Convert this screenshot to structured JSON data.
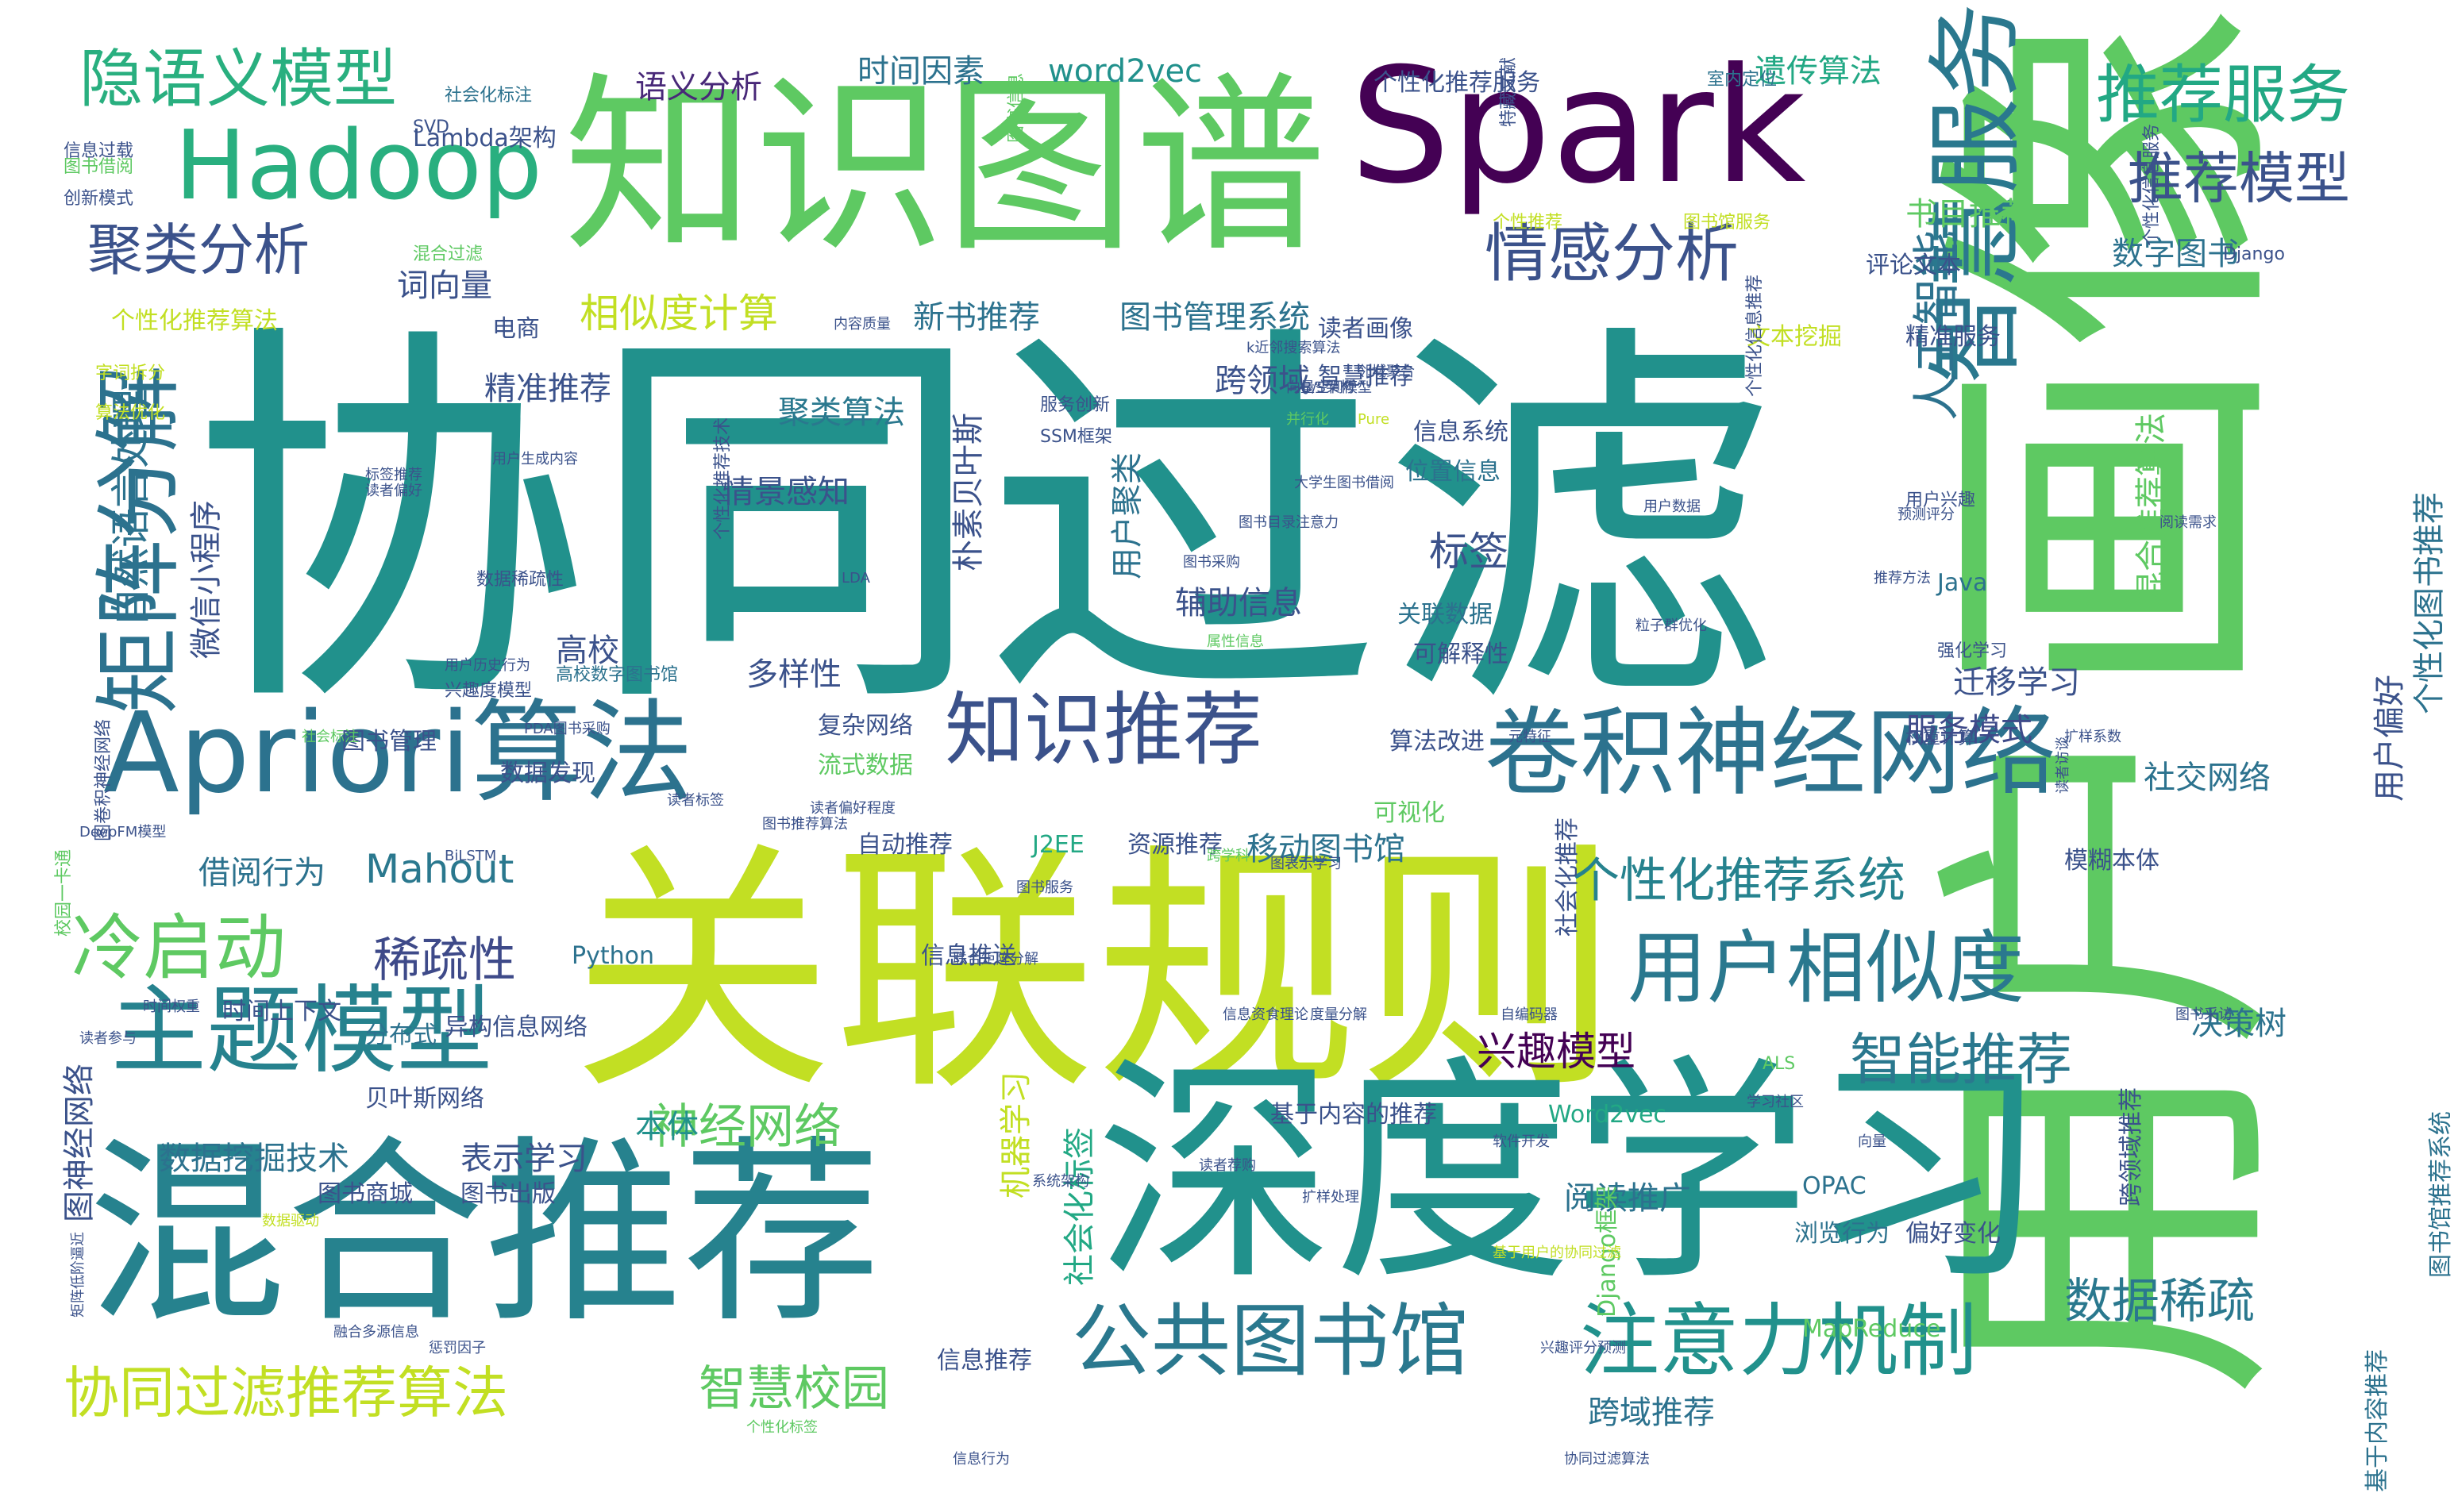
{
  "word_cloud": {
    "words": [
      {
        "text": "协同过滤",
        "color": "#21918c"
      },
      {
        "text": "用户画像",
        "color": "#5ec962"
      },
      {
        "text": "关联规则",
        "color": "#c2df23"
      },
      {
        "text": "深度学习",
        "color": "#21918c"
      },
      {
        "text": "混合推荐",
        "color": "#26828e"
      },
      {
        "text": "知识图谱",
        "color": "#5ec962"
      },
      {
        "text": "Spark",
        "color": "#440154"
      },
      {
        "text": "Apriori算法",
        "color": "#2c728e"
      },
      {
        "text": "Hadoop",
        "color": "#29af7f"
      },
      {
        "text": "卷积神经网络",
        "color": "#2c728e"
      },
      {
        "text": "智慧服务",
        "color": "#2a788e"
      },
      {
        "text": "矩阵分解",
        "color": "#2c728e"
      },
      {
        "text": "主题模型",
        "color": "#26828e"
      },
      {
        "text": "用户相似度",
        "color": "#2a788e"
      },
      {
        "text": "公共图书馆",
        "color": "#2a788e"
      },
      {
        "text": "注意力机制",
        "color": "#21918c"
      },
      {
        "text": "知识推荐",
        "color": "#3b528b"
      },
      {
        "text": "情感分析",
        "color": "#3b528b"
      },
      {
        "text": "隐语义模型",
        "color": "#29af7f"
      },
      {
        "text": "推荐服务",
        "color": "#22a884"
      },
      {
        "text": "推荐模型",
        "color": "#3b528b"
      },
      {
        "text": "聚类分析",
        "color": "#3b528b"
      },
      {
        "text": "冷启动",
        "color": "#5ec962"
      },
      {
        "text": "协同过滤推荐算法",
        "color": "#c2df23"
      },
      {
        "text": "个性化推荐系统",
        "color": "#26828e"
      },
      {
        "text": "智能推荐",
        "color": "#2a788e"
      },
      {
        "text": "人工智能",
        "color": "#2c728e"
      },
      {
        "text": "稀疏性",
        "color": "#3e4a89"
      },
      {
        "text": "Mahout",
        "color": "#2a788e"
      },
      {
        "text": "神经网络",
        "color": "#5ec962"
      },
      {
        "text": "智慧校园",
        "color": "#5ec962"
      },
      {
        "text": "数据稀疏",
        "color": "#2a788e"
      },
      {
        "text": "标签",
        "color": "#3b528b"
      },
      {
        "text": "兴趣模型",
        "color": "#440154"
      },
      {
        "text": "自然语言处理",
        "color": "#2c728e"
      },
      {
        "text": "相似度计算",
        "color": "#c2df23"
      },
      {
        "text": "遗传算法",
        "color": "#22a884"
      },
      {
        "text": "word2vec",
        "color": "#21918c"
      },
      {
        "text": "时间因素",
        "color": "#2c728e"
      },
      {
        "text": "语义分析",
        "color": "#482878"
      },
      {
        "text": "新书推荐",
        "color": "#2c728e"
      },
      {
        "text": "图书管理系统",
        "color": "#2c728e"
      },
      {
        "text": "精准推荐",
        "color": "#3b528b"
      },
      {
        "text": "跨领域",
        "color": "#3b528b"
      },
      {
        "text": "聚类算法",
        "color": "#2a788e"
      },
      {
        "text": "情景感知",
        "color": "#3b528b"
      },
      {
        "text": "多样性",
        "color": "#3b528b"
      },
      {
        "text": "高校",
        "color": "#3b528b"
      },
      {
        "text": "辅助信息",
        "color": "#3b528b"
      },
      {
        "text": "迁移学习",
        "color": "#3b528b"
      },
      {
        "text": "移动图书馆",
        "color": "#2c728e"
      },
      {
        "text": "决策树",
        "color": "#2c728e"
      },
      {
        "text": "表示学习",
        "color": "#3b528b"
      },
      {
        "text": "数据挖掘技术",
        "color": "#2c728e"
      },
      {
        "text": "本体",
        "color": "#21918c"
      },
      {
        "text": "阅读推广",
        "color": "#2c728e"
      },
      {
        "text": "跨域推荐",
        "color": "#2c728e"
      },
      {
        "text": "借阅行为",
        "color": "#2c728e"
      },
      {
        "text": "服务模式",
        "color": "#3e4a89"
      },
      {
        "text": "社交网络",
        "color": "#2c728e"
      },
      {
        "text": "数字图书",
        "color": "#2c728e"
      },
      {
        "text": "书目推荐",
        "color": "#5ec962"
      },
      {
        "text": "Lambda架构",
        "color": "#3b528b"
      },
      {
        "text": "词向量",
        "color": "#3b528b"
      },
      {
        "text": "电商",
        "color": "#3b528b"
      },
      {
        "text": "微信小程序",
        "color": "#3b528b"
      },
      {
        "text": "图神经网络",
        "color": "#3b528b"
      },
      {
        "text": "用户偏好",
        "color": "#3b528b"
      },
      {
        "text": "个性化图书推荐",
        "color": "#2c728e"
      },
      {
        "text": "混合推荐算法",
        "color": "#5ec962"
      },
      {
        "text": "机器学习",
        "color": "#c2df23"
      },
      {
        "text": "社会化标签",
        "color": "#22a884"
      },
      {
        "text": "朴素贝叶斯",
        "color": "#3b528b"
      },
      {
        "text": "用户聚类",
        "color": "#2c728e"
      },
      {
        "text": "智慧推荐",
        "color": "#3b528b"
      },
      {
        "text": "读者画像",
        "color": "#3b528b"
      },
      {
        "text": "个性化推荐算法",
        "color": "#c2df23"
      },
      {
        "text": "个性化推荐服务",
        "color": "#3b528b"
      },
      {
        "text": "精准服务",
        "color": "#3b528b"
      },
      {
        "text": "文本挖掘",
        "color": "#c2df23"
      },
      {
        "text": "评论文本",
        "color": "#3b528b"
      },
      {
        "text": "位置信息",
        "color": "#2c728e"
      },
      {
        "text": "关联数据",
        "color": "#2c728e"
      },
      {
        "text": "可解释性",
        "color": "#3b528b"
      },
      {
        "text": "信息系统",
        "color": "#3b528b"
      },
      {
        "text": "Java",
        "color": "#2c728e"
      },
      {
        "text": "图书管理",
        "color": "#3b528b"
      },
      {
        "text": "复杂网络",
        "color": "#3b528b"
      },
      {
        "text": "流式数据",
        "color": "#5ec962"
      },
      {
        "text": "自动推荐",
        "color": "#3b528b"
      },
      {
        "text": "J2EE",
        "color": "#22a884"
      },
      {
        "text": "资源推荐",
        "color": "#3b528b"
      },
      {
        "text": "数据发现",
        "color": "#3b528b"
      },
      {
        "text": "可视化",
        "color": "#5ec962"
      },
      {
        "text": "算法改进",
        "color": "#3b528b"
      },
      {
        "text": "模糊本体",
        "color": "#3b528b"
      },
      {
        "text": "贝叶斯网络",
        "color": "#3b528b"
      },
      {
        "text": "时间上下文",
        "color": "#3b528b"
      },
      {
        "text": "分布式",
        "color": "#2c728e"
      },
      {
        "text": "异构信息网络",
        "color": "#3b528b"
      },
      {
        "text": "图书商城",
        "color": "#3b528b"
      },
      {
        "text": "图书出版",
        "color": "#3b528b"
      },
      {
        "text": "信息推送",
        "color": "#3b528b"
      },
      {
        "text": "Python",
        "color": "#2c728e"
      },
      {
        "text": "Word2vec",
        "color": "#22a884"
      },
      {
        "text": "基于内容的推荐",
        "color": "#3b528b"
      },
      {
        "text": "社会化推荐",
        "color": "#3b528b"
      },
      {
        "text": "跨领域推荐",
        "color": "#3b528b"
      },
      {
        "text": "OPAC",
        "color": "#2c728e"
      },
      {
        "text": "浏览行为",
        "color": "#2c728e"
      },
      {
        "text": "偏好变化",
        "color": "#3b528b"
      },
      {
        "text": "MapReduce",
        "color": "#5ec962"
      },
      {
        "text": "信息推荐",
        "color": "#3b528b"
      },
      {
        "text": "Django框架",
        "color": "#5ec962"
      },
      {
        "text": "图书馆推荐系统",
        "color": "#2c728e"
      },
      {
        "text": "基于内容推荐",
        "color": "#2c728e"
      },
      {
        "text": "SVD",
        "color": "#3b528b"
      },
      {
        "text": "社会化标注",
        "color": "#2c728e"
      },
      {
        "text": "信息过载",
        "color": "#3b528b"
      },
      {
        "text": "图书借阅",
        "color": "#5ec962"
      },
      {
        "text": "创新模式",
        "color": "#3b528b"
      },
      {
        "text": "字词拆分",
        "color": "#c2df23"
      },
      {
        "text": "算法优化",
        "color": "#c2df23"
      },
      {
        "text": "数据稀疏性",
        "color": "#3b528b"
      },
      {
        "text": "兴趣度模型",
        "color": "#3b528b"
      },
      {
        "text": "高校数字图书馆",
        "color": "#2c728e"
      },
      {
        "text": "个性化推荐技术",
        "color": "#3b528b"
      },
      {
        "text": "图卷积神经网络",
        "color": "#3b528b"
      },
      {
        "text": "校园一卡通",
        "color": "#5ec962"
      },
      {
        "text": "强化学习",
        "color": "#3b528b"
      },
      {
        "text": "ALS",
        "color": "#5ec962"
      },
      {
        "text": "用户兴趣",
        "color": "#3b528b"
      },
      {
        "text": "权重计算",
        "color": "#3b528b"
      },
      {
        "text": "个性推荐",
        "color": "#c2df23"
      },
      {
        "text": "图书馆服务",
        "color": "#c2df23"
      },
      {
        "text": "特藏文献",
        "color": "#3b528b"
      },
      {
        "text": "室内定位",
        "color": "#2c728e"
      },
      {
        "text": "混合过滤",
        "color": "#5ec962"
      },
      {
        "text": "个性化信息推荐",
        "color": "#3b528b"
      },
      {
        "text": "个性化信息服务",
        "color": "#3b528b"
      },
      {
        "text": "图书信息",
        "color": "#5ec962"
      },
      {
        "text": "Django",
        "color": "#3b528b"
      },
      {
        "text": "服务创新",
        "color": "#3b528b"
      },
      {
        "text": "SSM框架",
        "color": "#3b528b"
      },
      {
        "text": "B/S架构",
        "color": "#3b528b"
      },
      {
        "text": "并行化",
        "color": "#5ec962"
      },
      {
        "text": "LDA",
        "color": "#3b528b"
      },
      {
        "text": "标签推荐",
        "color": "#3b528b"
      },
      {
        "text": "读者偏好",
        "color": "#3b528b"
      },
      {
        "text": "用户历史行为",
        "color": "#3b528b"
      },
      {
        "text": "用户生成内容",
        "color": "#3b528b"
      },
      {
        "text": "k近邻搜索算法",
        "color": "#3b528b"
      },
      {
        "text": "大学生图书借阅",
        "color": "#3b528b"
      },
      {
        "text": "邻域聚合",
        "color": "#3b528b"
      },
      {
        "text": "Pure",
        "color": "#c2df23"
      },
      {
        "text": "向量空间模型",
        "color": "#3b528b"
      },
      {
        "text": "预测评分",
        "color": "#3b528b"
      },
      {
        "text": "阅读需求",
        "color": "#3b528b"
      },
      {
        "text": "推荐方法",
        "color": "#3b528b"
      },
      {
        "text": "图书采购",
        "color": "#3b528b"
      },
      {
        "text": "用户数据",
        "color": "#3b528b"
      },
      {
        "text": "粒子群优化",
        "color": "#3b528b"
      },
      {
        "text": "属性信息",
        "color": "#5ec962"
      },
      {
        "text": "图书目录注意力",
        "color": "#3b528b"
      },
      {
        "text": "PDA图书采购",
        "color": "#3b528b"
      },
      {
        "text": "社会标注",
        "color": "#5ec962"
      },
      {
        "text": "元特征",
        "color": "#3b528b"
      },
      {
        "text": "扩样系数",
        "color": "#3b528b"
      },
      {
        "text": "图书推荐算法",
        "color": "#3b528b"
      },
      {
        "text": "跨学科",
        "color": "#5ec962"
      },
      {
        "text": "DeepFM模型",
        "color": "#3b528b"
      },
      {
        "text": "BiLSTM",
        "color": "#3b528b"
      },
      {
        "text": "图书服务",
        "color": "#3b528b"
      },
      {
        "text": "图表示学习",
        "color": "#3b528b"
      },
      {
        "text": "联合矩阵分解",
        "color": "#3b528b"
      },
      {
        "text": "时间权重",
        "color": "#3b528b"
      },
      {
        "text": "读者参与",
        "color": "#3b528b"
      },
      {
        "text": "信息资食理论",
        "color": "#3b528b"
      },
      {
        "text": "自编码器",
        "color": "#3b528b"
      },
      {
        "text": "度量分解",
        "color": "#3b528b"
      },
      {
        "text": "学习社区",
        "color": "#3b528b"
      },
      {
        "text": "软件开发",
        "color": "#3b528b"
      },
      {
        "text": "读者荐购",
        "color": "#3b528b"
      },
      {
        "text": "系统架构",
        "color": "#3b528b"
      },
      {
        "text": "数据驱动",
        "color": "#c2df23"
      },
      {
        "text": "扩样处理",
        "color": "#3b528b"
      },
      {
        "text": "融合多源信息",
        "color": "#3b528b"
      },
      {
        "text": "惩罚因子",
        "color": "#3b528b"
      },
      {
        "text": "矩阵低阶逼近",
        "color": "#3b528b"
      },
      {
        "text": "基于用户的协同过滤",
        "color": "#c2df23"
      },
      {
        "text": "兴趣评分预测",
        "color": "#3b528b"
      },
      {
        "text": "个性化标签",
        "color": "#5ec962"
      },
      {
        "text": "信息行为",
        "color": "#3b528b"
      },
      {
        "text": "协同过滤算法",
        "color": "#3b528b"
      },
      {
        "text": "向量",
        "color": "#3b528b"
      },
      {
        "text": "图书采访",
        "color": "#3b528b"
      },
      {
        "text": "读者访谈",
        "color": "#3b528b"
      },
      {
        "text": "读者标签",
        "color": "#3b528b"
      },
      {
        "text": "读者偏好程度",
        "color": "#3b528b"
      },
      {
        "text": "内容质量",
        "color": "#3b528b"
      }
    ]
  }
}
